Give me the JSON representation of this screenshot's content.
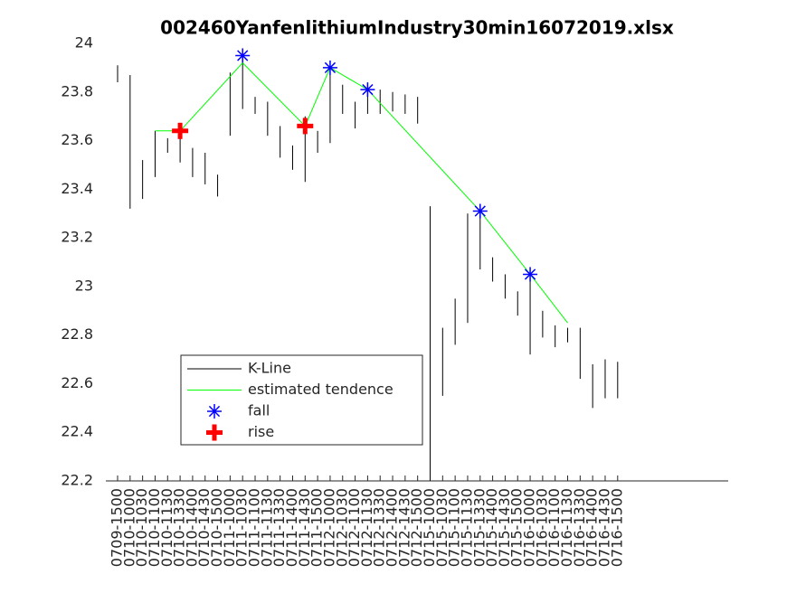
{
  "chart_data": {
    "type": "kline",
    "title": "002460YanfenlithiumIndustry30min16072019.xlsx",
    "categories": [
      "0709-1500",
      "0710-1000",
      "0710-1030",
      "0710-1100",
      "0710-1130",
      "0710-1330",
      "0710-1400",
      "0710-1430",
      "0710-1500",
      "0711-1000",
      "0711-1030",
      "0711-1100",
      "0711-1130",
      "0711-1330",
      "0711-1400",
      "0711-1430",
      "0711-1500",
      "0712-1000",
      "0712-1030",
      "0712-1100",
      "0712-1130",
      "0712-1330",
      "0712-1400",
      "0712-1430",
      "0712-1500",
      "0715-1000",
      "0715-1030",
      "0715-1100",
      "0715-1130",
      "0715-1330",
      "0715-1400",
      "0715-1430",
      "0715-1500",
      "0716-1000",
      "0716-1030",
      "0716-1100",
      "0716-1130",
      "0716-1330",
      "0716-1400",
      "0716-1430",
      "0716-1500"
    ],
    "ylim": [
      22.2,
      24
    ],
    "yticks": [
      22.2,
      22.4,
      22.6,
      22.8,
      23,
      23.2,
      23.4,
      23.6,
      23.8,
      24
    ],
    "legend": "lower-left",
    "series": [
      {
        "name": "K-Line",
        "color": "#000000",
        "low": [
          23.84,
          23.32,
          23.36,
          23.45,
          23.55,
          23.51,
          23.45,
          23.42,
          23.37,
          23.62,
          23.73,
          23.71,
          23.62,
          23.53,
          23.48,
          23.43,
          23.55,
          23.59,
          23.71,
          23.65,
          23.71,
          23.71,
          23.72,
          23.71,
          23.67,
          22.2,
          22.55,
          22.76,
          22.85,
          23.07,
          23.02,
          22.95,
          22.88,
          22.72,
          22.79,
          22.75,
          22.77,
          22.62,
          22.5,
          22.54,
          22.54
        ],
        "high": [
          23.91,
          23.87,
          23.52,
          23.64,
          23.61,
          23.64,
          23.57,
          23.55,
          23.46,
          23.88,
          23.95,
          23.78,
          23.76,
          23.66,
          23.58,
          23.7,
          23.64,
          23.89,
          23.83,
          23.76,
          23.83,
          23.81,
          23.8,
          23.79,
          23.78,
          23.33,
          22.83,
          22.95,
          23.3,
          23.29,
          23.12,
          23.05,
          22.98,
          23.03,
          22.9,
          22.84,
          22.83,
          22.83,
          22.68,
          22.7,
          22.69
        ]
      },
      {
        "name": "estimated tendence",
        "color": "#00ff00",
        "x": [
          "0710-1100",
          "0710-1330",
          "0711-1030",
          "0711-1430",
          "0712-1000",
          "0712-1130",
          "0715-1330",
          "0716-1000",
          "0716-1130"
        ],
        "values": [
          23.64,
          23.64,
          23.92,
          23.66,
          23.9,
          23.81,
          23.31,
          23.05,
          22.85
        ]
      },
      {
        "name": "fall",
        "color": "#0000ff",
        "x": [
          "0711-1030",
          "0712-1000",
          "0712-1130",
          "0715-1330",
          "0716-1000"
        ],
        "values": [
          23.95,
          23.9,
          23.81,
          23.31,
          23.05
        ]
      },
      {
        "name": "rise",
        "color": "#ff0000",
        "x": [
          "0710-1330",
          "0711-1430"
        ],
        "values": [
          23.64,
          23.66
        ]
      }
    ]
  }
}
